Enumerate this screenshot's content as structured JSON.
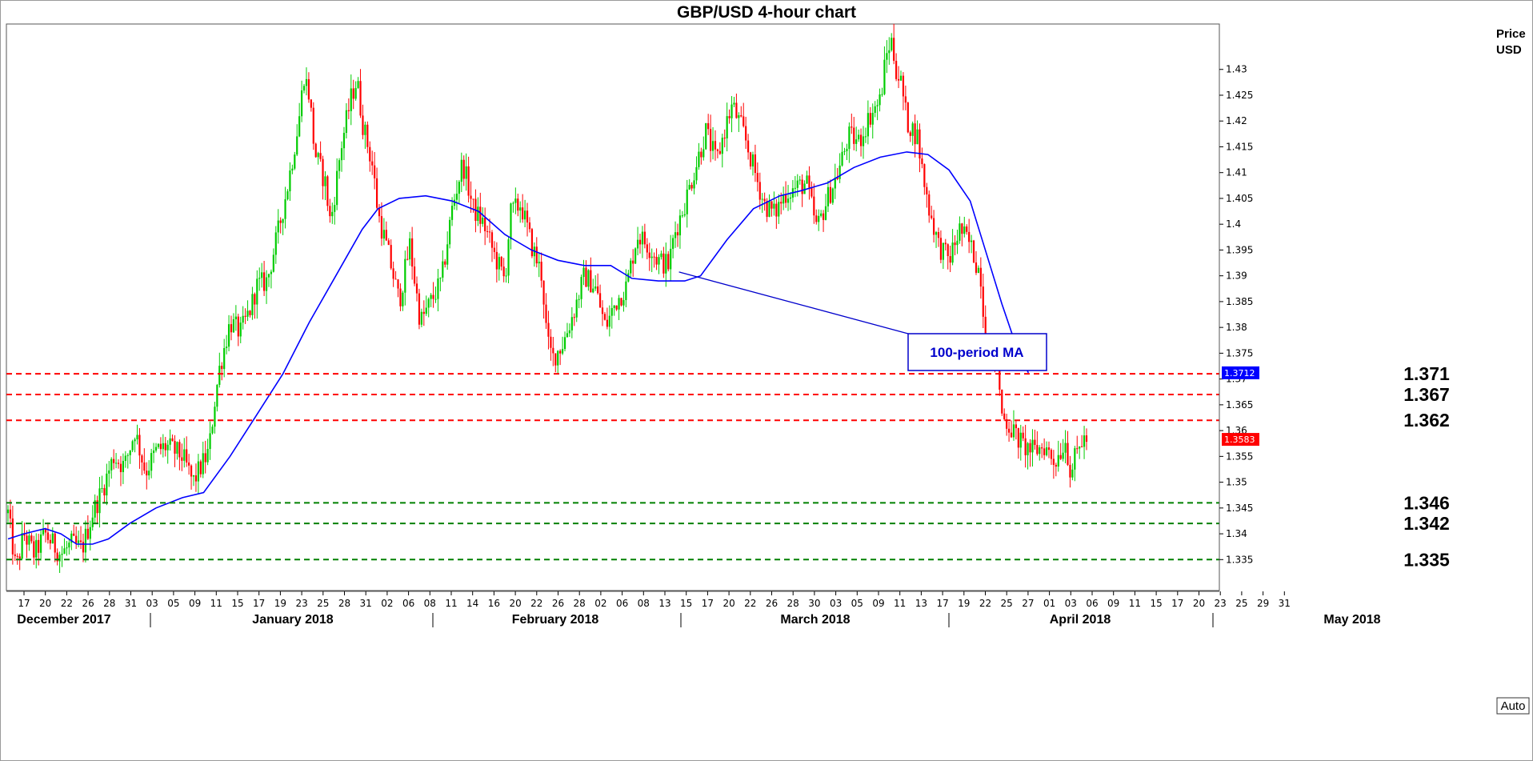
{
  "chart_data": {
    "type": "candlestick",
    "title": "GBP/USD 4-hour chart",
    "ylabel": "Price USD",
    "ylabel_lines": [
      "Price",
      "USD"
    ],
    "ylim": [
      1.329,
      1.4388
    ],
    "y_ticks": [
      "1.335",
      "1.34",
      "1.345",
      "1.35",
      "1.355",
      "1.36",
      "1.365",
      "1.37",
      "1.375",
      "1.38",
      "1.385",
      "1.39",
      "1.395",
      "1.4",
      "1.405",
      "1.41",
      "1.415",
      "1.42",
      "1.425",
      "1.43"
    ],
    "x_ticks": [
      "17",
      "20",
      "22",
      "26",
      "28",
      "31",
      "03",
      "05",
      "09",
      "11",
      "15",
      "17",
      "19",
      "23",
      "25",
      "28",
      "31",
      "02",
      "06",
      "08",
      "11",
      "14",
      "16",
      "20",
      "22",
      "26",
      "28",
      "02",
      "06",
      "08",
      "13",
      "15",
      "17",
      "20",
      "22",
      "26",
      "28",
      "30",
      "03",
      "05",
      "09",
      "11",
      "13",
      "17",
      "19",
      "22",
      "25",
      "27",
      "01",
      "03",
      "06",
      "09",
      "11",
      "15",
      "17",
      "20",
      "23",
      "25",
      "29",
      "31"
    ],
    "x_months": [
      "December 2017",
      "January 2018",
      "February 2018",
      "March 2018",
      "April 2018",
      "May 2018"
    ],
    "price_path": [
      [
        0,
        1.344
      ],
      [
        1.5,
        1.333
      ],
      [
        3,
        1.34
      ],
      [
        5,
        1.336
      ],
      [
        7,
        1.34
      ],
      [
        10,
        1.336
      ],
      [
        12,
        1.338
      ],
      [
        14,
        1.337
      ],
      [
        16,
        1.344
      ],
      [
        18,
        1.349
      ],
      [
        20,
        1.355
      ],
      [
        22,
        1.353
      ],
      [
        24,
        1.36
      ],
      [
        26,
        1.352
      ],
      [
        28,
        1.356
      ],
      [
        30,
        1.357
      ],
      [
        33,
        1.355
      ],
      [
        35,
        1.35
      ],
      [
        38,
        1.356
      ],
      [
        39,
        1.365
      ],
      [
        40,
        1.372
      ],
      [
        42,
        1.381
      ],
      [
        44,
        1.379
      ],
      [
        46,
        1.384
      ],
      [
        47,
        1.388
      ],
      [
        49,
        1.389
      ],
      [
        51,
        1.398
      ],
      [
        53,
        1.408
      ],
      [
        55,
        1.42
      ],
      [
        56,
        1.429
      ],
      [
        57,
        1.425
      ],
      [
        58,
        1.414
      ],
      [
        60,
        1.408
      ],
      [
        61,
        1.4
      ],
      [
        63,
        1.415
      ],
      [
        65,
        1.425
      ],
      [
        66,
        1.428
      ],
      [
        67,
        1.42
      ],
      [
        69,
        1.411
      ],
      [
        70,
        1.402
      ],
      [
        72,
        1.394
      ],
      [
        74,
        1.385
      ],
      [
        76,
        1.396
      ],
      [
        78,
        1.381
      ],
      [
        80,
        1.385
      ],
      [
        82,
        1.389
      ],
      [
        84,
        1.403
      ],
      [
        86,
        1.412
      ],
      [
        88,
        1.403
      ],
      [
        90,
        1.4
      ],
      [
        92,
        1.394
      ],
      [
        94,
        1.389
      ],
      [
        95,
        1.402
      ],
      [
        97,
        1.404
      ],
      [
        99,
        1.396
      ],
      [
        101,
        1.39
      ],
      [
        102,
        1.377
      ],
      [
        103,
        1.374
      ],
      [
        105,
        1.377
      ],
      [
        107,
        1.383
      ],
      [
        109,
        1.39
      ],
      [
        111,
        1.388
      ],
      [
        113,
        1.38
      ],
      [
        115,
        1.385
      ],
      [
        117,
        1.388
      ],
      [
        119,
        1.398
      ],
      [
        121,
        1.396
      ],
      [
        123,
        1.393
      ],
      [
        125,
        1.392
      ],
      [
        126,
        1.398
      ],
      [
        128,
        1.404
      ],
      [
        130,
        1.411
      ],
      [
        132,
        1.418
      ],
      [
        134,
        1.412
      ],
      [
        136,
        1.42
      ],
      [
        137,
        1.423
      ],
      [
        139,
        1.418
      ],
      [
        141,
        1.411
      ],
      [
        143,
        1.404
      ],
      [
        145,
        1.402
      ],
      [
        147,
        1.406
      ],
      [
        149,
        1.407
      ],
      [
        151,
        1.408
      ],
      [
        153,
        1.399
      ],
      [
        155,
        1.405
      ],
      [
        157,
        1.41
      ],
      [
        159,
        1.417
      ],
      [
        161,
        1.416
      ],
      [
        163,
        1.421
      ],
      [
        165,
        1.424
      ],
      [
        166,
        1.432
      ],
      [
        167,
        1.436
      ],
      [
        168,
        1.43
      ],
      [
        169,
        1.427
      ],
      [
        170,
        1.42
      ],
      [
        172,
        1.417
      ],
      [
        173,
        1.41
      ],
      [
        174,
        1.404
      ],
      [
        176,
        1.396
      ],
      [
        178,
        1.393
      ],
      [
        180,
        1.399
      ],
      [
        182,
        1.396
      ],
      [
        184,
        1.39
      ],
      [
        185,
        1.375
      ],
      [
        186,
        1.376
      ],
      [
        187,
        1.375
      ],
      [
        188,
        1.363
      ],
      [
        190,
        1.36
      ],
      [
        192,
        1.357
      ],
      [
        194,
        1.356
      ],
      [
        196,
        1.357
      ],
      [
        198,
        1.354
      ],
      [
        200,
        1.358
      ],
      [
        201,
        1.352
      ],
      [
        202,
        1.355
      ],
      [
        203,
        1.358
      ],
      [
        204,
        1.3583
      ]
    ],
    "ma_100_path": [
      [
        0,
        1.339
      ],
      [
        3,
        1.34
      ],
      [
        7,
        1.341
      ],
      [
        10,
        1.34
      ],
      [
        13,
        1.338
      ],
      [
        16,
        1.338
      ],
      [
        19,
        1.339
      ],
      [
        23,
        1.342
      ],
      [
        28,
        1.345
      ],
      [
        33,
        1.347
      ],
      [
        37,
        1.348
      ],
      [
        42,
        1.355
      ],
      [
        47,
        1.363
      ],
      [
        52,
        1.371
      ],
      [
        57,
        1.381
      ],
      [
        62,
        1.39
      ],
      [
        67,
        1.399
      ],
      [
        70,
        1.403
      ],
      [
        74,
        1.405
      ],
      [
        79,
        1.4055
      ],
      [
        84,
        1.4045
      ],
      [
        89,
        1.4025
      ],
      [
        94,
        1.398
      ],
      [
        99,
        1.395
      ],
      [
        104,
        1.393
      ],
      [
        109,
        1.392
      ],
      [
        114,
        1.392
      ],
      [
        118,
        1.3895
      ],
      [
        123,
        1.389
      ],
      [
        128,
        1.389
      ],
      [
        131,
        1.39
      ],
      [
        136,
        1.397
      ],
      [
        141,
        1.403
      ],
      [
        146,
        1.4055
      ],
      [
        150,
        1.4065
      ],
      [
        155,
        1.408
      ],
      [
        160,
        1.411
      ],
      [
        165,
        1.413
      ],
      [
        170,
        1.414
      ],
      [
        174,
        1.4135
      ],
      [
        178,
        1.4105
      ],
      [
        182,
        1.4045
      ],
      [
        185,
        1.3945
      ],
      [
        188,
        1.3845
      ],
      [
        191,
        1.3755
      ],
      [
        193,
        1.3712
      ]
    ],
    "horizontal_levels": [
      {
        "label": "1.371",
        "value": 1.371,
        "color": "#ff0000"
      },
      {
        "label": "1.367",
        "value": 1.367,
        "color": "#ff0000"
      },
      {
        "label": "1.362",
        "value": 1.362,
        "color": "#ff0000"
      },
      {
        "label": "1.346",
        "value": 1.346,
        "color": "#008000"
      },
      {
        "label": "1.342",
        "value": 1.342,
        "color": "#008000"
      },
      {
        "label": "1.335",
        "value": 1.335,
        "color": "#008000"
      }
    ],
    "annotation": {
      "text": "100-period MA",
      "points_to": [
        126,
        1.3895
      ]
    },
    "last_price": "1.3583",
    "ma_last": "1.3712",
    "scale_button": "Auto",
    "grid": false,
    "colors": {
      "up": "#00cc00",
      "down": "#ff0000",
      "ma": "#0000ff",
      "last_price_tag": "#ff0000",
      "ma_tag": "#0000ff"
    }
  }
}
